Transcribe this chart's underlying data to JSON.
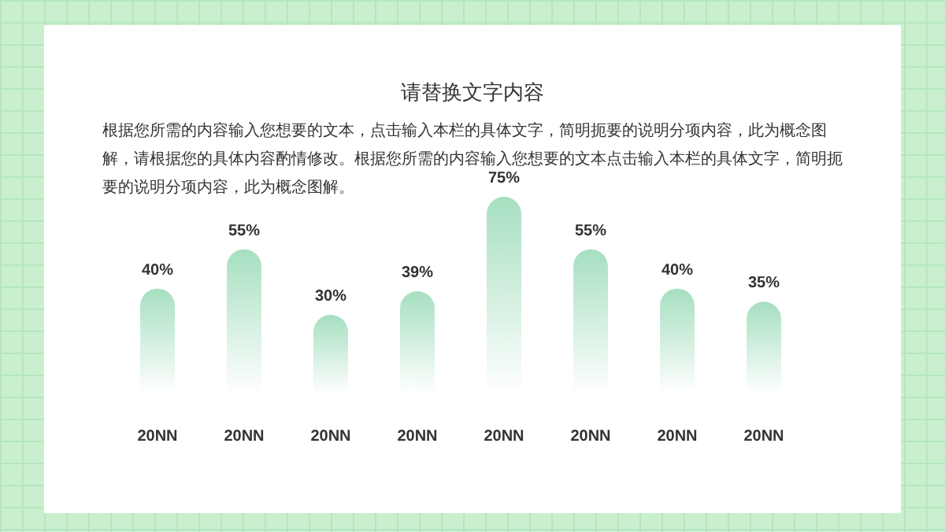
{
  "chart_data": {
    "type": "bar",
    "title": "请替换文字内容",
    "subtitle": "根据您所需的内容输入您想要的文本，点击输入本栏的具体文字，简明扼要的说明分项内容，此为概念图解，请根据您的具体内容酌情修改。根据您所需的内容输入您想要的文本点击输入本栏的具体文字，简明扼要的说明分项内容，此为概念图解。",
    "categories": [
      "20NN",
      "20NN",
      "20NN",
      "20NN",
      "20NN",
      "20NN",
      "20NN",
      "20NN"
    ],
    "values": [
      40,
      55,
      30,
      39,
      75,
      55,
      40,
      35
    ],
    "value_labels": [
      "40%",
      "55%",
      "30%",
      "39%",
      "75%",
      "55%",
      "40%",
      "35%"
    ],
    "color": "#a6dfc0"
  }
}
